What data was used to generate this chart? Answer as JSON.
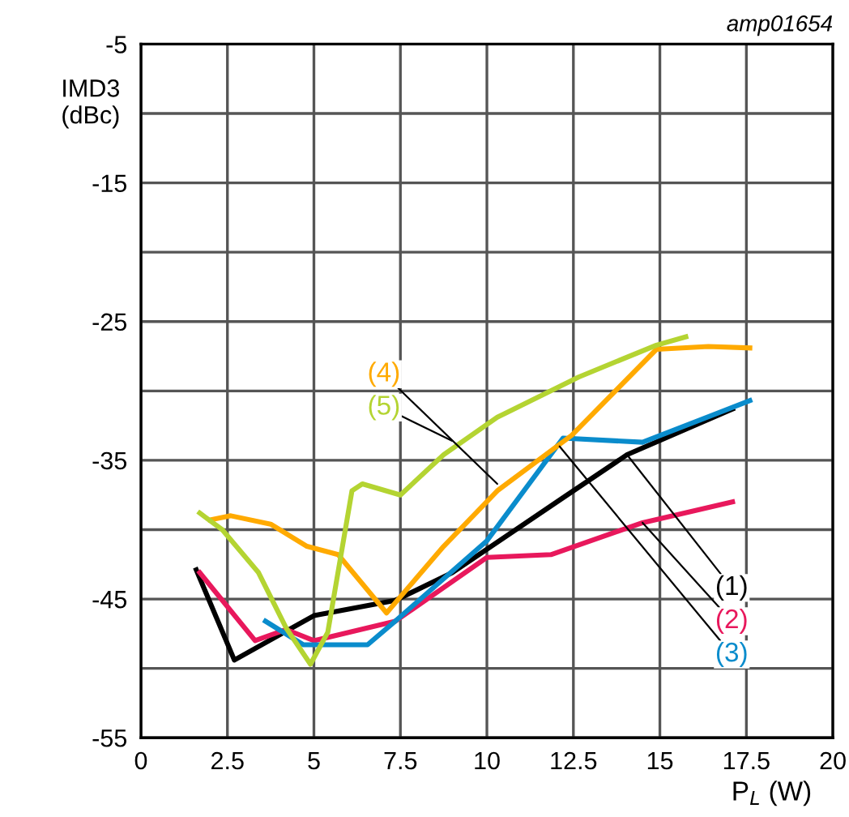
{
  "chart_data": {
    "type": "line",
    "xlabel": "P$_{L}$ (W)",
    "ylabel": "IMD3\n(dBc)",
    "xlim": [
      0,
      20
    ],
    "xticks": [
      0,
      {
        "value": 2.5,
        "label": "2.5"
      },
      5,
      {
        "value": 7.5,
        "label": "7.5"
      },
      10,
      {
        "value": 12.5,
        "label": "12.5"
      },
      15,
      {
        "value": 17.5,
        "label": "17.5"
      },
      20
    ],
    "ylim": [
      -55,
      -5
    ],
    "yticks": [
      -55,
      {
        "value": -50,
        "label": null
      },
      -45,
      {
        "value": -40,
        "label": null
      },
      -35,
      {
        "value": -30,
        "label": null
      },
      -25,
      {
        "value": -20,
        "label": null
      },
      -15,
      {
        "value": -10,
        "label": null
      },
      -5
    ],
    "grid": true,
    "line_style": "solid",
    "marker": "none",
    "series": [
      {
        "color": "#000000",
        "x": [
          1.6,
          2.7,
          5.0,
          7.35,
          9.0,
          12.2,
          14.05,
          17.1
        ],
        "values": [
          -42.9,
          -49.4,
          -46.2,
          -45.1,
          -43.1,
          -37.7,
          -34.6,
          -31.3
        ]
      },
      {
        "color": "#e8185c",
        "x": [
          1.7,
          3.3,
          4.2,
          5.0,
          7.35,
          10.0,
          11.85,
          14.5,
          17.1
        ],
        "values": [
          -43.1,
          -48.0,
          -47.2,
          -48.0,
          -46.6,
          -42.0,
          -41.8,
          -39.5,
          -38.0
        ]
      },
      {
        "color": "#0a8ccc",
        "x": [
          3.6,
          4.7,
          6.55,
          7.35,
          10.0,
          12.2,
          14.5,
          17.6
        ],
        "values": [
          -46.6,
          -48.3,
          -48.3,
          -46.6,
          -40.8,
          -33.4,
          -33.7,
          -30.7
        ]
      },
      {
        "color": "#ffaa00",
        "x": [
          2.0,
          2.6,
          3.75,
          4.8,
          5.7,
          7.1,
          8.75,
          10.3,
          12.45,
          14.9,
          16.4,
          17.6
        ],
        "values": [
          -39.3,
          -39.0,
          -39.6,
          -41.2,
          -41.8,
          -46.0,
          -41.2,
          -37.2,
          -33.2,
          -27.0,
          -26.8,
          -26.9
        ]
      },
      {
        "color": "#b4d432",
        "x": [
          1.7,
          2.35,
          3.4,
          4.2,
          4.9,
          5.4,
          6.1,
          6.4,
          7.5,
          8.75,
          10.3,
          12.65,
          14.9,
          15.75
        ],
        "values": [
          -38.8,
          -40.0,
          -43.1,
          -47.1,
          -49.7,
          -47.4,
          -37.2,
          -36.7,
          -37.5,
          -34.6,
          -31.9,
          -29.0,
          -26.7,
          -26.1
        ]
      }
    ],
    "annotations": [
      {
        "text": "(1)",
        "x": 14.05,
        "y": -34.6
      },
      {
        "text": "(2)",
        "x": 14.5,
        "y": -39.5
      },
      {
        "text": "(3)",
        "x": 12.1,
        "y": -34.0
      },
      {
        "text": "(4)",
        "x": 10.3,
        "y": -36.7
      },
      {
        "text": "(5)",
        "x": 9.0,
        "y": -33.6
      },
      "amp01654"
    ]
  }
}
